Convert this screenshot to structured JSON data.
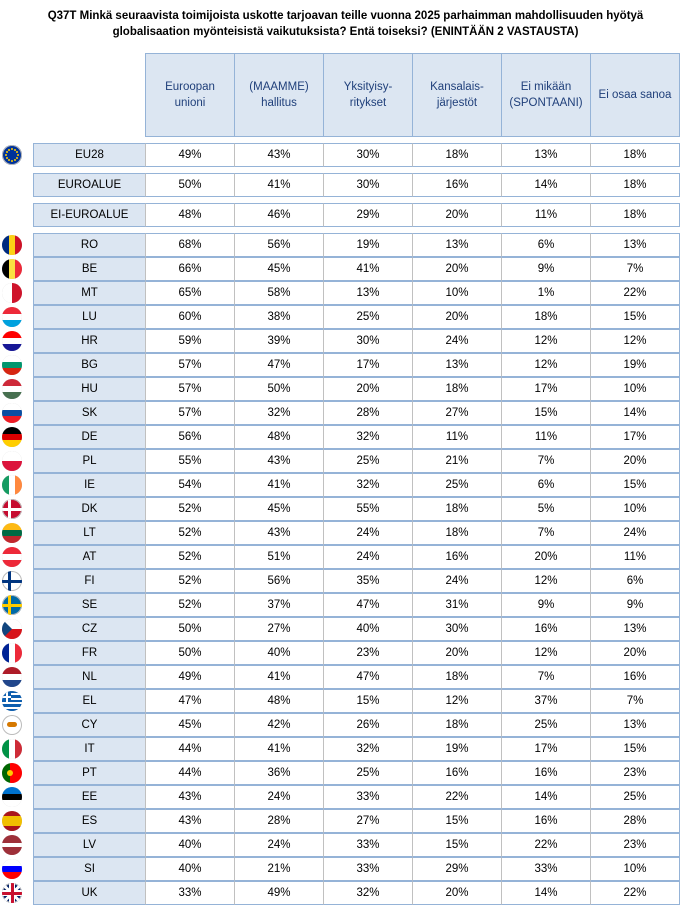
{
  "question": {
    "line1": "Q37T Minkä seuraavista toimijoista uskotte tarjoavan teille vuonna 2025 parhaimman mahdollisuuden hyötyä",
    "line2": "globalisaation myönteisistä vaikutuksista? Entä toiseksi? (ENINTÄÄN 2 VASTAUSTA)"
  },
  "columns": [
    "Euroopan\nunioni",
    "(MAAMME)\nhallitus",
    "Yksityisy-\nritykset",
    "Kansalais-\njärjestöt",
    "Ei mikään\n(SPONTAANI)",
    "Ei osaa sanoa"
  ],
  "summary_rows": [
    {
      "label": "EU28",
      "flag": "eu-flag-icon",
      "values": [
        "49%",
        "43%",
        "30%",
        "18%",
        "13%",
        "18%"
      ]
    },
    {
      "label": "EUROALUE",
      "flag": "",
      "values": [
        "50%",
        "41%",
        "30%",
        "16%",
        "14%",
        "18%"
      ]
    },
    {
      "label": "EI-EUROALUE",
      "flag": "",
      "values": [
        "48%",
        "46%",
        "29%",
        "20%",
        "11%",
        "18%"
      ]
    }
  ],
  "country_rows": [
    {
      "label": "RO",
      "values": [
        "68%",
        "56%",
        "19%",
        "13%",
        "6%",
        "13%"
      ]
    },
    {
      "label": "BE",
      "values": [
        "66%",
        "45%",
        "41%",
        "20%",
        "9%",
        "7%"
      ]
    },
    {
      "label": "MT",
      "values": [
        "65%",
        "58%",
        "13%",
        "10%",
        "1%",
        "22%"
      ]
    },
    {
      "label": "LU",
      "values": [
        "60%",
        "38%",
        "25%",
        "20%",
        "18%",
        "15%"
      ]
    },
    {
      "label": "HR",
      "values": [
        "59%",
        "39%",
        "30%",
        "24%",
        "12%",
        "12%"
      ]
    },
    {
      "label": "BG",
      "values": [
        "57%",
        "47%",
        "17%",
        "13%",
        "12%",
        "19%"
      ]
    },
    {
      "label": "HU",
      "values": [
        "57%",
        "50%",
        "20%",
        "18%",
        "17%",
        "10%"
      ]
    },
    {
      "label": "SK",
      "values": [
        "57%",
        "32%",
        "28%",
        "27%",
        "15%",
        "14%"
      ]
    },
    {
      "label": "DE",
      "values": [
        "56%",
        "48%",
        "32%",
        "11%",
        "11%",
        "17%"
      ]
    },
    {
      "label": "PL",
      "values": [
        "55%",
        "43%",
        "25%",
        "21%",
        "7%",
        "20%"
      ]
    },
    {
      "label": "IE",
      "values": [
        "54%",
        "41%",
        "32%",
        "25%",
        "6%",
        "15%"
      ]
    },
    {
      "label": "DK",
      "values": [
        "52%",
        "45%",
        "55%",
        "18%",
        "5%",
        "10%"
      ]
    },
    {
      "label": "LT",
      "values": [
        "52%",
        "43%",
        "24%",
        "18%",
        "7%",
        "24%"
      ]
    },
    {
      "label": "AT",
      "values": [
        "52%",
        "51%",
        "24%",
        "16%",
        "20%",
        "11%"
      ]
    },
    {
      "label": "FI",
      "values": [
        "52%",
        "56%",
        "35%",
        "24%",
        "12%",
        "6%"
      ]
    },
    {
      "label": "SE",
      "values": [
        "52%",
        "37%",
        "47%",
        "31%",
        "9%",
        "9%"
      ]
    },
    {
      "label": "CZ",
      "values": [
        "50%",
        "27%",
        "40%",
        "30%",
        "16%",
        "13%"
      ]
    },
    {
      "label": "FR",
      "values": [
        "50%",
        "40%",
        "23%",
        "20%",
        "12%",
        "20%"
      ]
    },
    {
      "label": "NL",
      "values": [
        "49%",
        "41%",
        "47%",
        "18%",
        "7%",
        "16%"
      ]
    },
    {
      "label": "EL",
      "values": [
        "47%",
        "48%",
        "15%",
        "12%",
        "37%",
        "7%"
      ]
    },
    {
      "label": "CY",
      "values": [
        "45%",
        "42%",
        "26%",
        "18%",
        "25%",
        "13%"
      ]
    },
    {
      "label": "IT",
      "values": [
        "44%",
        "41%",
        "32%",
        "19%",
        "17%",
        "15%"
      ]
    },
    {
      "label": "PT",
      "values": [
        "44%",
        "36%",
        "25%",
        "16%",
        "16%",
        "23%"
      ]
    },
    {
      "label": "EE",
      "values": [
        "43%",
        "24%",
        "33%",
        "22%",
        "14%",
        "25%"
      ]
    },
    {
      "label": "ES",
      "values": [
        "43%",
        "28%",
        "27%",
        "15%",
        "16%",
        "28%"
      ]
    },
    {
      "label": "LV",
      "values": [
        "40%",
        "24%",
        "33%",
        "15%",
        "22%",
        "23%"
      ]
    },
    {
      "label": "SI",
      "values": [
        "40%",
        "21%",
        "33%",
        "29%",
        "33%",
        "10%"
      ]
    },
    {
      "label": "UK",
      "values": [
        "33%",
        "49%",
        "32%",
        "20%",
        "14%",
        "22%"
      ]
    }
  ],
  "colors": {
    "header_fill": "#dce6f2",
    "border": "#95b3d7",
    "header_text": "#1f3f7a"
  }
}
